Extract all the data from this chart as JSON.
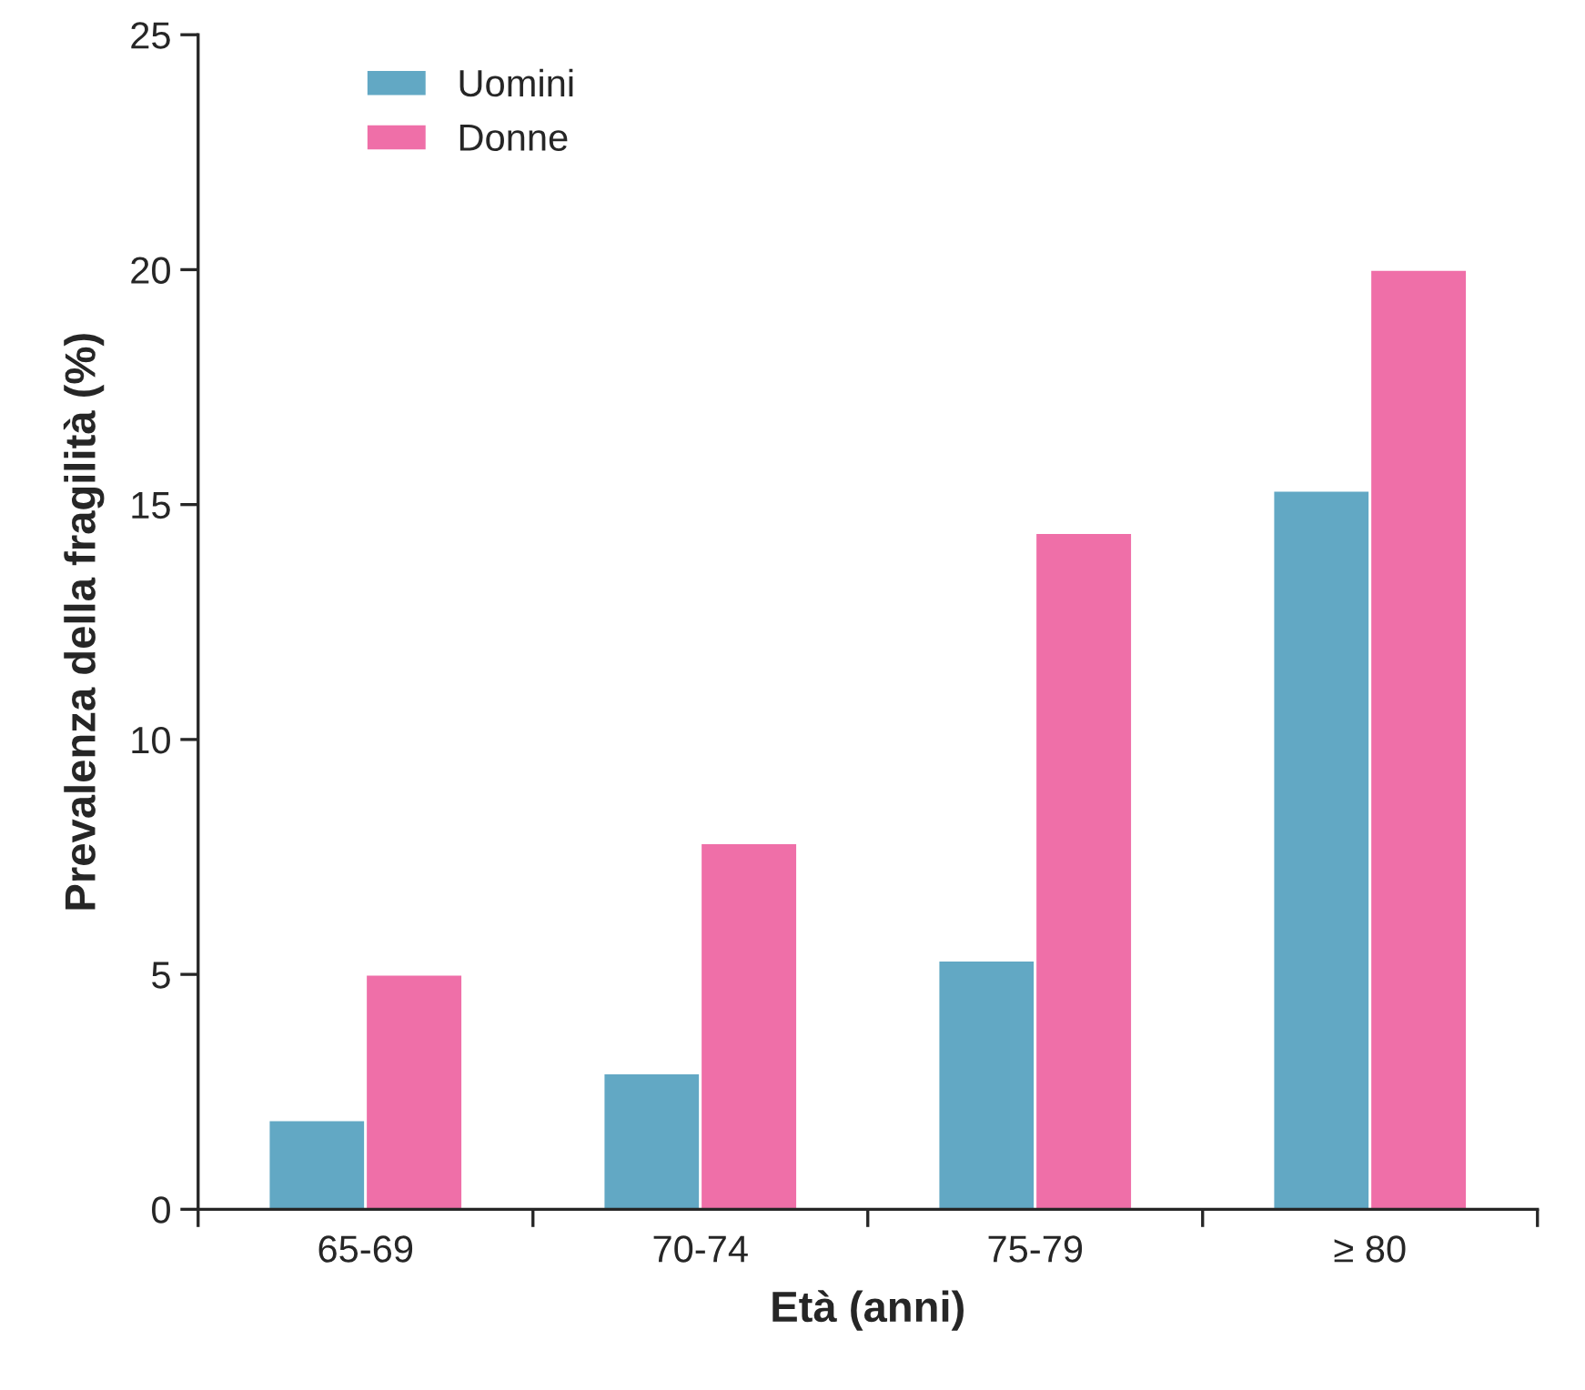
{
  "chart_data": {
    "type": "bar",
    "xlabel": "Età (anni)",
    "ylabel": "Prevalenza della fragilità (%)",
    "categories": [
      "65-69",
      "70-74",
      "75-79",
      "≥ 80"
    ],
    "series": [
      {
        "name": "Uomini",
        "color": "#62a8c4",
        "values": [
          1.9,
          2.9,
          5.3,
          15.3
        ]
      },
      {
        "name": "Donne",
        "color": "#ef6fa8",
        "values": [
          5.0,
          7.8,
          14.4,
          20.0
        ]
      }
    ],
    "ylim": [
      0,
      25
    ],
    "yticks": [
      0,
      5,
      10,
      15,
      20,
      25
    ],
    "grid": false,
    "legend": "top left"
  }
}
